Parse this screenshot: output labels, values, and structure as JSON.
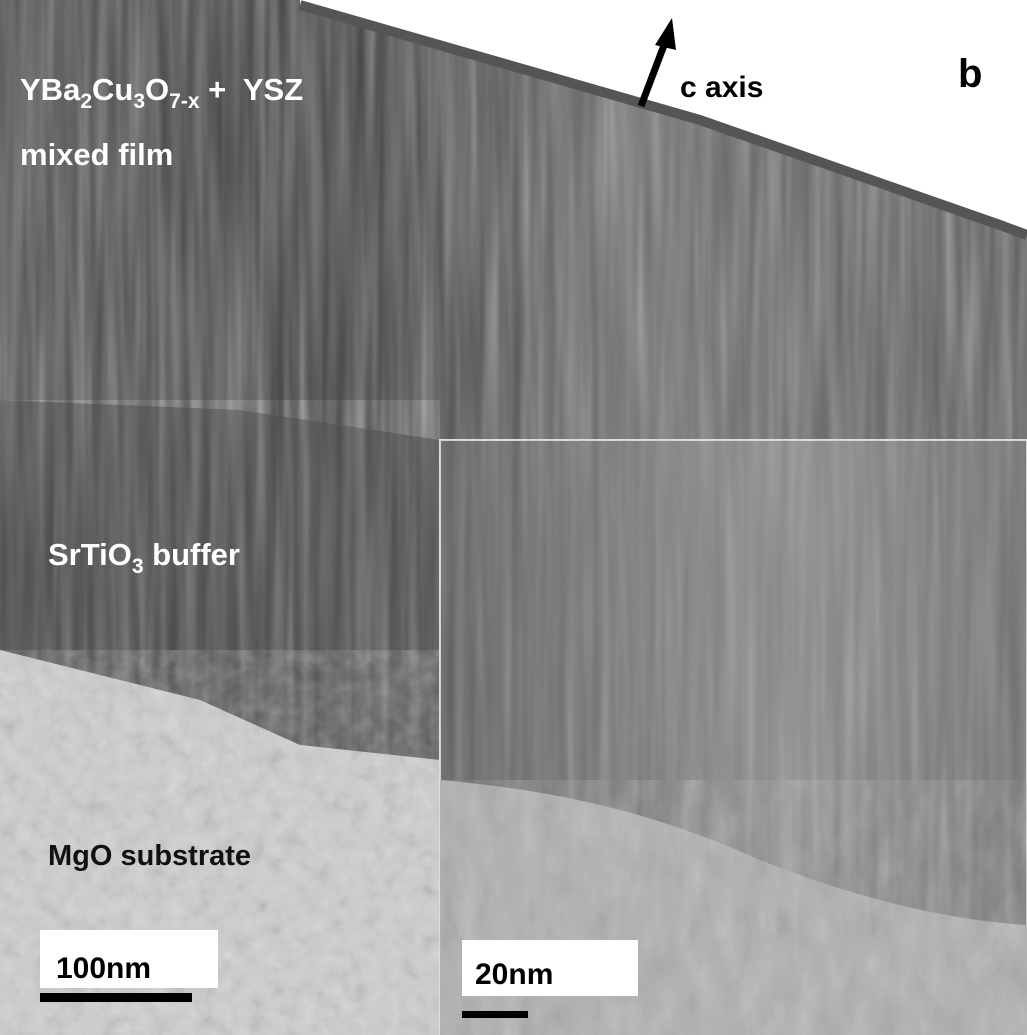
{
  "panel_label": "b",
  "arrow_label": "c axis",
  "film_label": {
    "parts": [
      "YBa",
      "2",
      "Cu",
      "3",
      "O",
      "7-x",
      " +  YSZ"
    ]
  },
  "film_label_line2": "mixed film",
  "buffer_label": {
    "parts": [
      "SrTiO",
      "3",
      " buffer"
    ]
  },
  "substrate_label": "MgO substrate",
  "scale_bar_main": "100nm",
  "scale_bar_inset": "20nm"
}
